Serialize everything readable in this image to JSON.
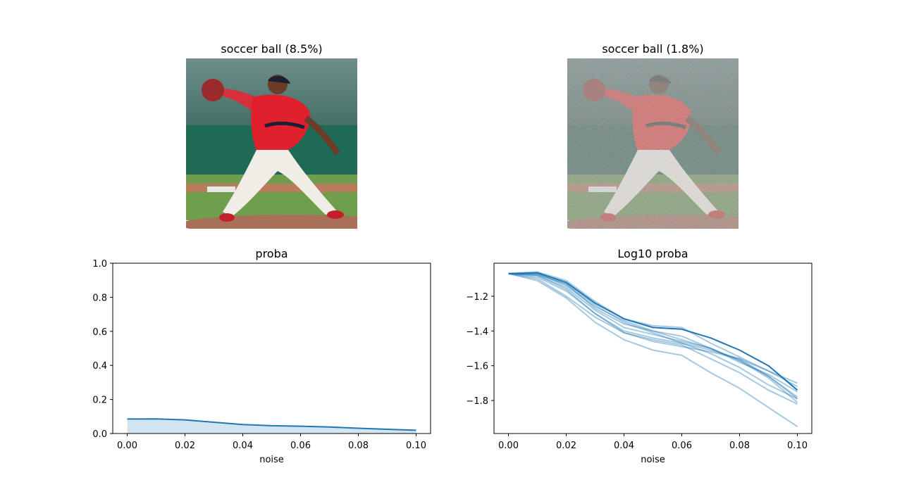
{
  "images": [
    {
      "title": "soccer ball (8.5%)",
      "noisy": false
    },
    {
      "title": "soccer ball (1.8%)",
      "noisy": true
    }
  ],
  "chart_data": [
    {
      "type": "area",
      "title": "proba",
      "xlabel": "noise",
      "ylabel": "",
      "xlim": [
        -0.005,
        0.105
      ],
      "ylim": [
        0,
        1.0
      ],
      "xticks": [
        "0.00",
        "0.02",
        "0.04",
        "0.06",
        "0.08",
        "0.10"
      ],
      "yticks": [
        "0.0",
        "0.2",
        "0.4",
        "0.6",
        "0.8",
        "1.0"
      ],
      "color": "#1f77b4",
      "x": [
        0.0,
        0.01,
        0.02,
        0.03,
        0.04,
        0.05,
        0.06,
        0.07,
        0.08,
        0.09,
        0.1
      ],
      "values": [
        0.085,
        0.086,
        0.08,
        0.066,
        0.053,
        0.046,
        0.043,
        0.038,
        0.031,
        0.025,
        0.019
      ]
    },
    {
      "type": "line",
      "title": "Log10 proba",
      "xlabel": "noise",
      "ylabel": "",
      "xlim": [
        -0.005,
        0.105
      ],
      "ylim": [
        -1.99,
        -1.01
      ],
      "xticks": [
        "0.00",
        "0.02",
        "0.04",
        "0.06",
        "0.08",
        "0.10"
      ],
      "yticks": [
        "−1.2",
        "−1.4",
        "−1.6",
        "−1.8"
      ],
      "ytick_values": [
        -1.2,
        -1.4,
        -1.6,
        -1.8
      ],
      "color": "#1f77b4",
      "x": [
        0.0,
        0.01,
        0.02,
        0.03,
        0.04,
        0.05,
        0.06,
        0.07,
        0.08,
        0.09,
        0.1
      ],
      "series": [
        {
          "values": [
            -1.07,
            -1.065,
            -1.12,
            -1.24,
            -1.33,
            -1.38,
            -1.39,
            -1.44,
            -1.51,
            -1.6,
            -1.74
          ],
          "highlight": true
        },
        {
          "values": [
            -1.07,
            -1.07,
            -1.14,
            -1.26,
            -1.34,
            -1.4,
            -1.45,
            -1.5,
            -1.57,
            -1.66,
            -1.78
          ]
        },
        {
          "values": [
            -1.07,
            -1.09,
            -1.17,
            -1.3,
            -1.4,
            -1.44,
            -1.47,
            -1.51,
            -1.56,
            -1.63,
            -1.72
          ]
        },
        {
          "values": [
            -1.07,
            -1.1,
            -1.2,
            -1.32,
            -1.41,
            -1.46,
            -1.49,
            -1.52,
            -1.56,
            -1.66,
            -1.79
          ]
        },
        {
          "values": [
            -1.07,
            -1.08,
            -1.15,
            -1.28,
            -1.38,
            -1.42,
            -1.46,
            -1.5,
            -1.57,
            -1.67,
            -1.81
          ]
        },
        {
          "values": [
            -1.07,
            -1.06,
            -1.11,
            -1.23,
            -1.33,
            -1.37,
            -1.38,
            -1.47,
            -1.55,
            -1.63,
            -1.7
          ]
        },
        {
          "values": [
            -1.07,
            -1.07,
            -1.13,
            -1.27,
            -1.36,
            -1.4,
            -1.43,
            -1.5,
            -1.58,
            -1.65,
            -1.75
          ]
        },
        {
          "values": [
            -1.07,
            -1.08,
            -1.16,
            -1.3,
            -1.41,
            -1.45,
            -1.48,
            -1.56,
            -1.64,
            -1.74,
            -1.82
          ]
        },
        {
          "values": [
            -1.07,
            -1.11,
            -1.21,
            -1.35,
            -1.45,
            -1.51,
            -1.54,
            -1.64,
            -1.73,
            -1.84,
            -1.95
          ]
        },
        {
          "values": [
            -1.07,
            -1.075,
            -1.13,
            -1.25,
            -1.35,
            -1.41,
            -1.47,
            -1.53,
            -1.61,
            -1.71,
            -1.79
          ]
        }
      ]
    }
  ]
}
